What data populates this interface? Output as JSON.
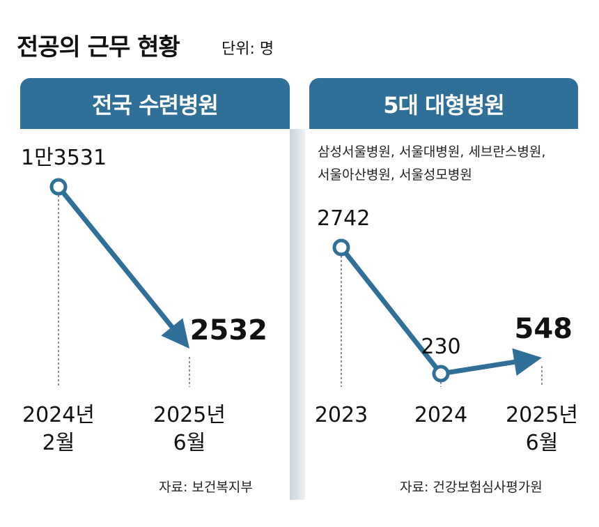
{
  "header": {
    "title": "전공의 근무 현황",
    "unit": "단위: 명"
  },
  "panels": [
    {
      "banner": "전국 수련병원",
      "note_lines": [],
      "source": "자료: 보건복지부"
    },
    {
      "banner": "5대 대형병원",
      "note_lines": [
        "삼성서울병원, 서울대병원, 세브란스병원,",
        "서울아산병원, 서울성모병원"
      ],
      "source": "자료: 건강보험심사평가원"
    }
  ],
  "colors": {
    "accent": "#2f6f98",
    "banner_text": "#ffffff"
  },
  "chart_data": [
    {
      "type": "line",
      "categories": [
        "2024년 2월",
        "2025년 6월"
      ],
      "tick_lines": [
        [
          "2024년",
          "2월"
        ],
        [
          "2025년",
          "6월"
        ]
      ],
      "values": [
        13531,
        2532
      ],
      "data_labels": [
        "1만3531",
        "2532"
      ],
      "arrow_end": true
    },
    {
      "type": "line",
      "categories": [
        "2023",
        "2024",
        "2025년 6월"
      ],
      "tick_lines": [
        [
          "2023"
        ],
        [
          "2024"
        ],
        [
          "2025년",
          "6월"
        ]
      ],
      "values": [
        2742,
        230,
        548
      ],
      "data_labels": [
        "2742",
        "230",
        "548"
      ],
      "arrow_end": true
    }
  ]
}
